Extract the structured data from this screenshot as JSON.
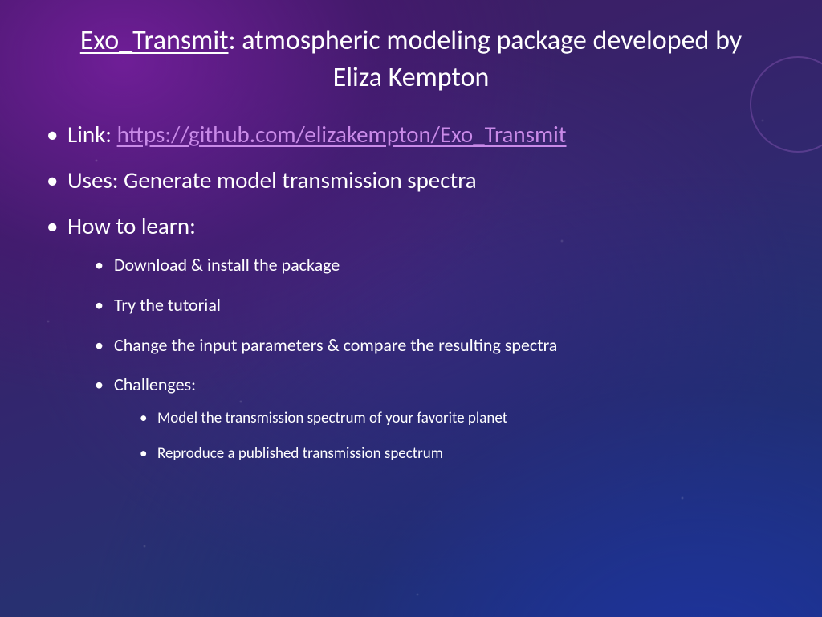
{
  "colors": {
    "text": "#ffffff",
    "link": "#c98ae8",
    "bg_gradient_top": "#3d1a5e",
    "bg_gradient_bottom": "#1a3c8a"
  },
  "title": {
    "bold": "Exo_Transmit",
    "rest": ": atmospheric modeling package developed by Eliza Kempton"
  },
  "bullets": [
    {
      "prefix": "Link: ",
      "link_text": "https://github.com/elizakempton/Exo_Transmit",
      "link_href": "https://github.com/elizakempton/Exo_Transmit"
    },
    {
      "text": "Uses: Generate model transmission spectra"
    },
    {
      "text": "How to learn:",
      "children": [
        {
          "text": "Download & install the package"
        },
        {
          "text": "Try the tutorial"
        },
        {
          "text": "Change the input parameters & compare the resulting spectra"
        },
        {
          "text": "Challenges:",
          "children": [
            {
              "text": "Model the transmission spectrum of your favorite planet"
            },
            {
              "text": "Reproduce a published transmission spectrum"
            }
          ]
        }
      ]
    }
  ]
}
